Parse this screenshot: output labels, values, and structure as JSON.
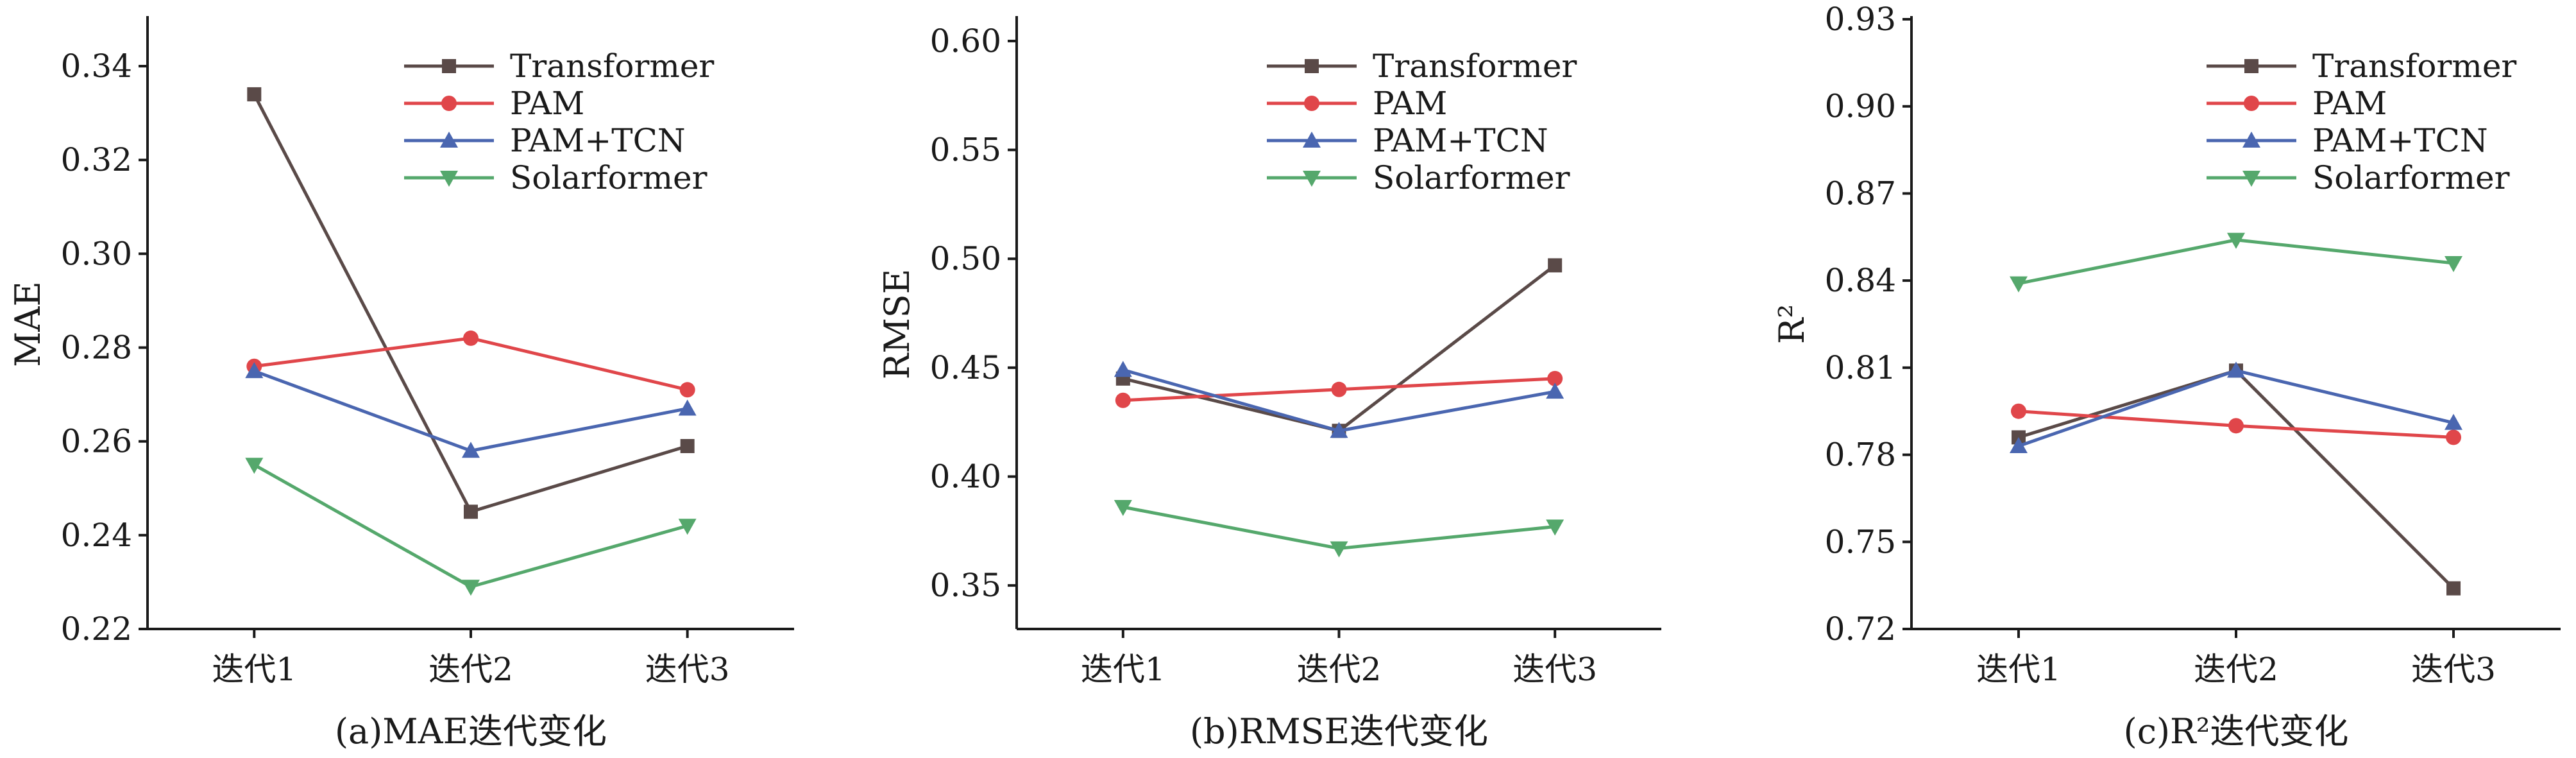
{
  "colors": {
    "Transformer": "#5a4a48",
    "PAM": "#e0464a",
    "PAM+TCN": "#4a66b0",
    "Solarformer": "#55a86c"
  },
  "chart_data": [
    {
      "type": "line",
      "caption": "(a)MAE迭代变化",
      "ylabel": "MAE",
      "categories": [
        "迭代1",
        "迭代2",
        "迭代3"
      ],
      "ylim": [
        0.22,
        0.35
      ],
      "yticks": [
        "0.22",
        "0.24",
        "0.26",
        "0.28",
        "0.30",
        "0.32",
        "0.34"
      ],
      "legend": {
        "position": "top-right"
      },
      "series": [
        {
          "name": "Transformer",
          "marker": "square",
          "values": [
            0.334,
            0.245,
            0.259
          ]
        },
        {
          "name": "PAM",
          "marker": "circle",
          "values": [
            0.276,
            0.282,
            0.271
          ]
        },
        {
          "name": "PAM+TCN",
          "marker": "triangle-up",
          "values": [
            0.275,
            0.258,
            0.267
          ]
        },
        {
          "name": "Solarformer",
          "marker": "triangle-down",
          "values": [
            0.255,
            0.229,
            0.242
          ]
        }
      ]
    },
    {
      "type": "line",
      "caption": "(b)RMSE迭代变化",
      "ylabel": "RMSE",
      "categories": [
        "迭代1",
        "迭代2",
        "迭代3"
      ],
      "ylim": [
        0.33,
        0.61
      ],
      "yticks": [
        "0.35",
        "0.40",
        "0.45",
        "0.50",
        "0.55",
        "0.60"
      ],
      "legend": {
        "position": "top-right"
      },
      "series": [
        {
          "name": "Transformer",
          "marker": "square",
          "values": [
            0.445,
            0.421,
            0.497
          ]
        },
        {
          "name": "PAM",
          "marker": "circle",
          "values": [
            0.435,
            0.44,
            0.445
          ]
        },
        {
          "name": "PAM+TCN",
          "marker": "triangle-up",
          "values": [
            0.449,
            0.421,
            0.439
          ]
        },
        {
          "name": "Solarformer",
          "marker": "triangle-down",
          "values": [
            0.386,
            0.367,
            0.377
          ]
        }
      ]
    },
    {
      "type": "line",
      "caption": "(c)R²迭代变化",
      "ylabel": "R²",
      "categories": [
        "迭代1",
        "迭代2",
        "迭代3"
      ],
      "ylim": [
        0.72,
        0.93
      ],
      "yticks": [
        "0.72",
        "0.75",
        "0.78",
        "0.81",
        "0.84",
        "0.87",
        "0.90",
        "0.93"
      ],
      "legend": {
        "position": "top-right"
      },
      "series": [
        {
          "name": "Transformer",
          "marker": "square",
          "values": [
            0.786,
            0.809,
            0.734
          ]
        },
        {
          "name": "PAM",
          "marker": "circle",
          "values": [
            0.795,
            0.79,
            0.786
          ]
        },
        {
          "name": "PAM+TCN",
          "marker": "triangle-up",
          "values": [
            0.783,
            0.809,
            0.791
          ]
        },
        {
          "name": "Solarformer",
          "marker": "triangle-down",
          "values": [
            0.839,
            0.854,
            0.846
          ]
        }
      ]
    }
  ]
}
